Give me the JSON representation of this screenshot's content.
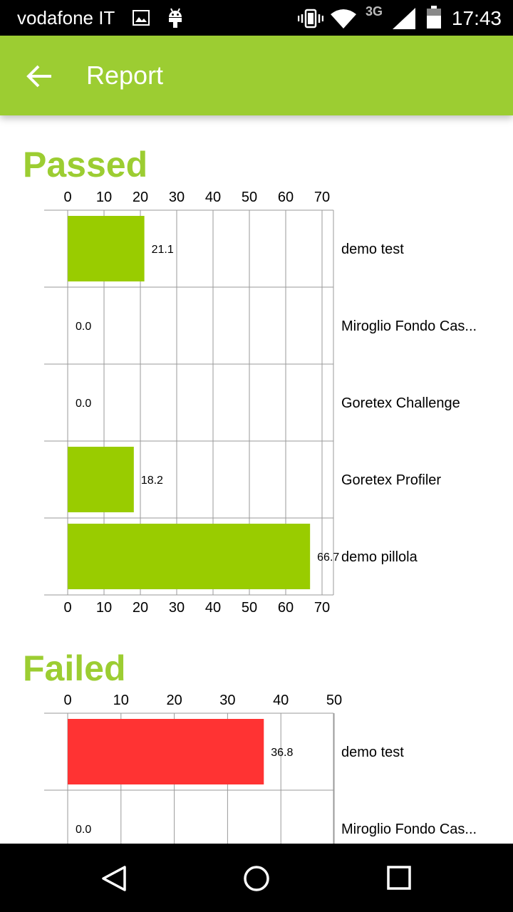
{
  "status_bar": {
    "carrier": "vodafone IT",
    "network": "3G",
    "time": "17:43",
    "icons": [
      "image-icon",
      "android-icon",
      "vibrate-icon",
      "wifi-icon",
      "signal-icon",
      "battery-icon"
    ]
  },
  "app_bar": {
    "title": "Report",
    "back_icon": "arrow-back-icon",
    "color": "#9ccd32"
  },
  "sections": {
    "passed": {
      "title": "Passed"
    },
    "failed": {
      "title": "Failed"
    }
  },
  "nav_bar": {
    "icons": [
      "back-triangle-icon",
      "home-circle-icon",
      "recents-square-icon"
    ]
  },
  "chart_data": [
    {
      "type": "bar",
      "orientation": "horizontal",
      "title": "Passed",
      "categories": [
        "demo test",
        "Miroglio Fondo Cas...",
        "Goretex Challenge",
        "Goretex Profiler",
        "demo pillola"
      ],
      "values": [
        21.1,
        0.0,
        0.0,
        18.2,
        66.7
      ],
      "value_labels": [
        "21.1",
        "0.0",
        "0.0",
        "18.2",
        "66.7"
      ],
      "xlim": [
        0,
        70
      ],
      "ticks": [
        0,
        10,
        20,
        30,
        40,
        50,
        60,
        70
      ],
      "tick_labels": [
        "0",
        "10",
        "20",
        "30",
        "40",
        "50",
        "60",
        "70"
      ],
      "color": "#99cc00",
      "grid": true
    },
    {
      "type": "bar",
      "orientation": "horizontal",
      "title": "Failed",
      "categories": [
        "demo test",
        "Miroglio Fondo Cas..."
      ],
      "values": [
        36.8,
        0.0
      ],
      "value_labels": [
        "36.8",
        "0.0"
      ],
      "xlim": [
        0,
        50
      ],
      "ticks": [
        0,
        10,
        20,
        30,
        40,
        50
      ],
      "tick_labels": [
        "0",
        "10",
        "20",
        "30",
        "40",
        "50"
      ],
      "color": "#ff3333",
      "grid": true
    }
  ]
}
